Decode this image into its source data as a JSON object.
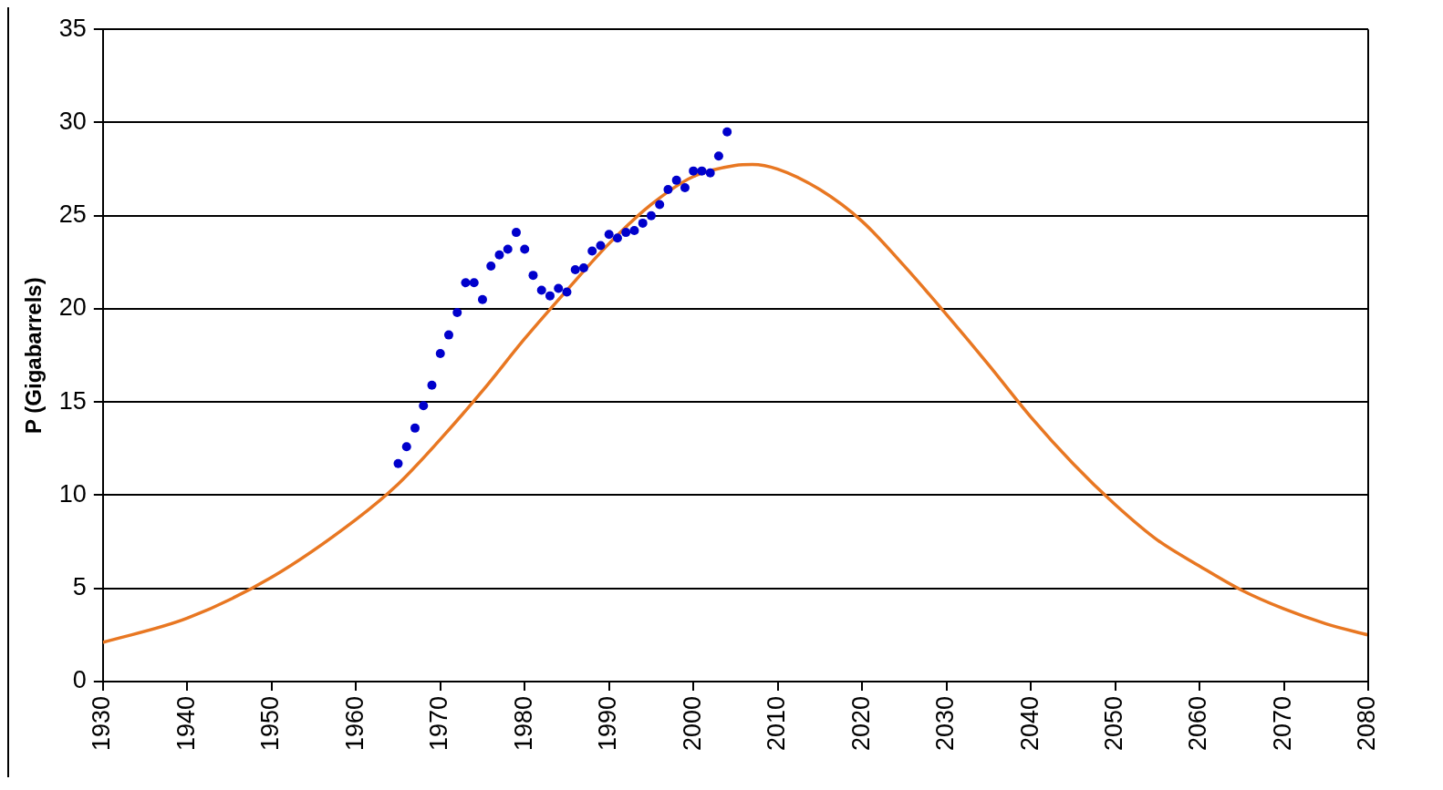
{
  "chart_data": {
    "type": "line",
    "ylabel": "P (Gigabarrels)",
    "xlim": [
      1930,
      2080
    ],
    "xticks": [
      1930,
      1940,
      1950,
      1960,
      1970,
      1980,
      1990,
      2000,
      2010,
      2020,
      2030,
      2040,
      2050,
      2060,
      2070,
      2080
    ],
    "ylim": [
      0,
      35
    ],
    "yticks": [
      0,
      5,
      10,
      15,
      20,
      25,
      30,
      35
    ],
    "grid": "y",
    "legend": false,
    "series": [
      {
        "type": "scatter",
        "color": "#0000cc",
        "marker": "circle",
        "x": [
          1965,
          1966,
          1967,
          1968,
          1969,
          1970,
          1971,
          1972,
          1973,
          1974,
          1975,
          1976,
          1977,
          1978,
          1979,
          1980,
          1981,
          1982,
          1983,
          1984,
          1985,
          1986,
          1987,
          1988,
          1989,
          1990,
          1991,
          1992,
          1993,
          1994,
          1995,
          1996,
          1997,
          1998,
          1999,
          2000,
          2001,
          2002,
          2003,
          2004
        ],
        "values": [
          11.7,
          12.6,
          13.6,
          14.8,
          15.9,
          17.6,
          18.6,
          19.8,
          21.4,
          21.4,
          20.5,
          22.3,
          22.9,
          23.2,
          24.1,
          23.2,
          21.8,
          21.0,
          20.7,
          21.1,
          20.9,
          22.1,
          22.2,
          23.1,
          23.4,
          24.0,
          23.8,
          24.1,
          24.2,
          24.6,
          25.0,
          25.6,
          26.4,
          26.9,
          26.5,
          27.4,
          27.4,
          27.3,
          28.2,
          29.5
        ]
      },
      {
        "color": "#e87722",
        "marker": "none",
        "line_style": "solid",
        "x": [
          1930,
          1940,
          1950,
          1960,
          1965,
          1970,
          1975,
          1980,
          1985,
          1990,
          1995,
          2000,
          2005,
          2007,
          2010,
          2015,
          2020,
          2025,
          2030,
          2035,
          2040,
          2045,
          2050,
          2055,
          2060,
          2065,
          2070,
          2075,
          2080
        ],
        "values": [
          2.1,
          3.4,
          5.6,
          8.7,
          10.6,
          13.0,
          15.6,
          18.4,
          21.0,
          23.5,
          25.6,
          27.1,
          27.7,
          27.75,
          27.5,
          26.4,
          24.7,
          22.3,
          19.7,
          17.0,
          14.2,
          11.7,
          9.5,
          7.6,
          6.2,
          4.9,
          3.9,
          3.1,
          2.5
        ]
      }
    ]
  }
}
